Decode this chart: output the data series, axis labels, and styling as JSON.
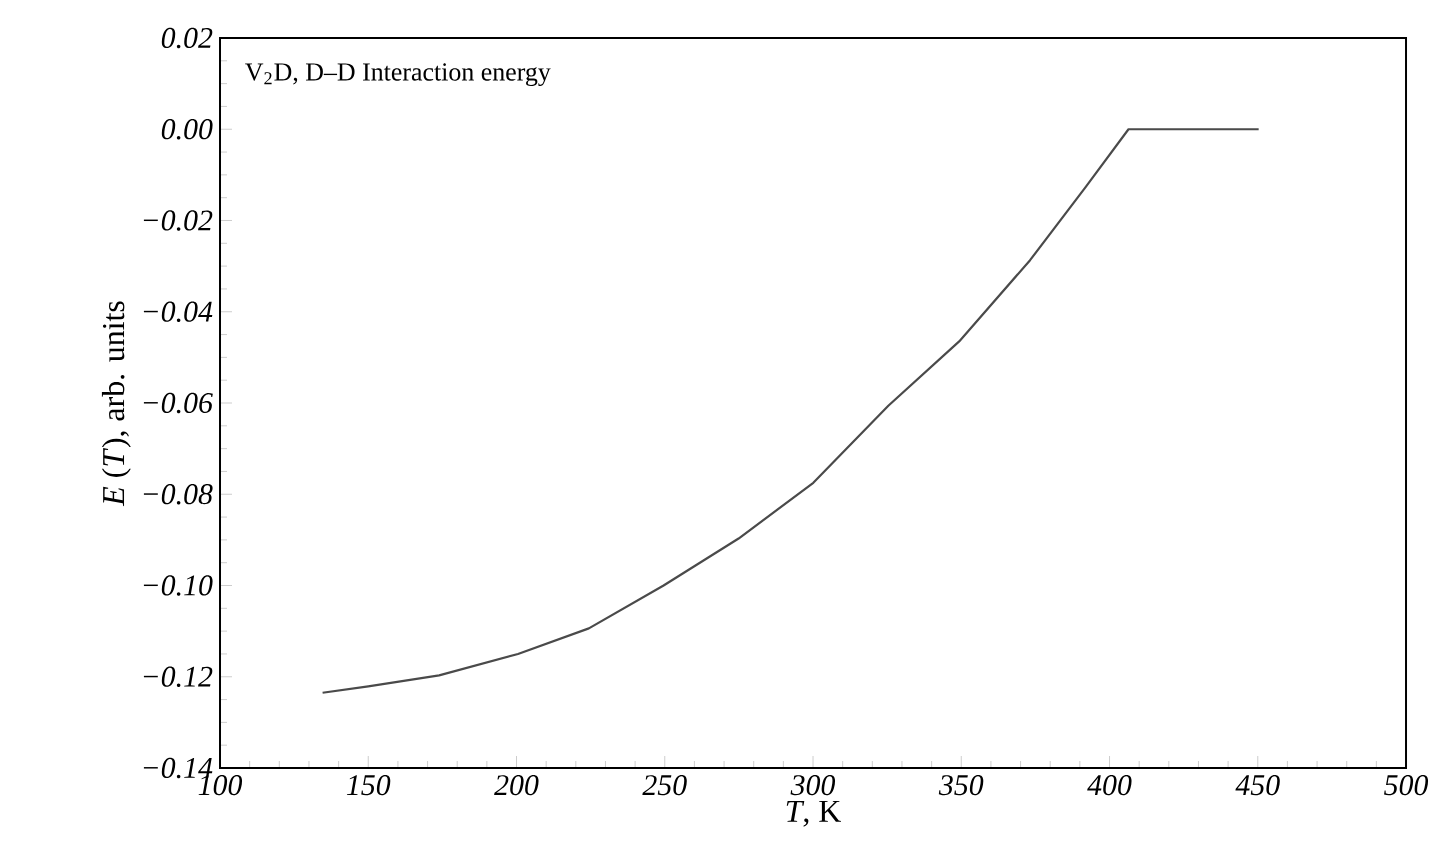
{
  "chart_data": {
    "type": "line",
    "xlabel": "*T*, K",
    "ylabel": "*E* (*T*), arb. units",
    "annotations": [
      "V$_{2}$D, D–D Interaction energy"
    ],
    "x": [
      134.6,
      150,
      173.9,
      200.5,
      224.4,
      249.6,
      274.9,
      300.1,
      325.4,
      349.3,
      373.2,
      391.8,
      406.4,
      450.3
    ],
    "series": [
      {
        "color": "#4a4a4a",
        "values": [
          -0.1235,
          -0.1221,
          -0.1197,
          -0.115,
          -0.1094,
          -0.1,
          -0.0897,
          -0.0775,
          -0.0606,
          -0.0465,
          -0.0287,
          -0.0128,
          0,
          0
        ]
      }
    ],
    "xlim": [
      100,
      500
    ],
    "ylim": [
      -0.14,
      0.02
    ],
    "xticks": [
      100,
      150,
      200,
      250,
      300,
      350,
      400,
      450,
      500
    ],
    "yticks": [
      {
        "value": 0.02,
        "label": "0.02"
      },
      {
        "value": 0,
        "label": "0.00"
      },
      {
        "value": -0.02,
        "label": "−0.02"
      },
      {
        "value": -0.04,
        "label": "−0.04"
      },
      {
        "value": -0.06,
        "label": "−0.06"
      },
      {
        "value": -0.08,
        "label": "−0.08"
      },
      {
        "value": -0.1,
        "label": "−0.10"
      },
      {
        "value": -0.12,
        "label": "−0.12"
      },
      {
        "value": -0.14,
        "label": "−0.14"
      }
    ],
    "grid": false,
    "legend": false,
    "marker": "none",
    "line_style": "solid"
  }
}
